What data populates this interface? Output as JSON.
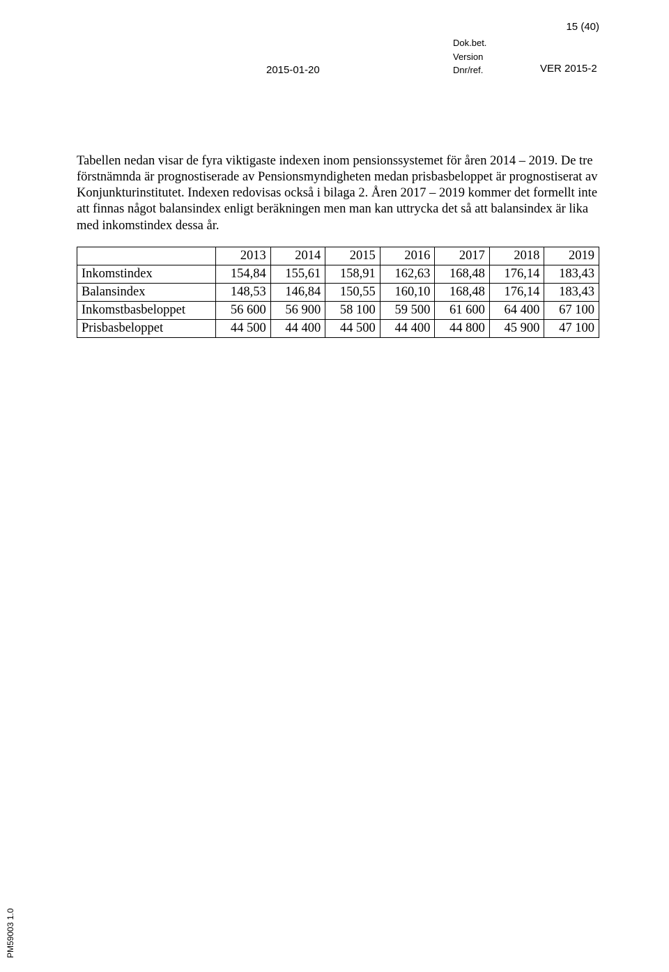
{
  "header": {
    "page_count": "15 (40)",
    "date": "2015-01-20",
    "label_dok": "Dok.bet.",
    "label_version": "Version",
    "label_dnr": "Dnr/ref.",
    "ver": "VER 2015-2"
  },
  "paragraph": "Tabellen nedan visar de fyra viktigaste indexen inom pensionssystemet för åren 2014 – 2019. De tre förstnämnda är prognostiserade av Pensionsmyndigheten medan prisbasbeloppet är prognostiserat av Konjunkturinstitutet. Indexen redovisas också i bilaga 2. Åren 2017 – 2019 kommer det formellt inte att finnas något balansindex enligt beräkningen men man kan uttrycka det så att balansindex är lika med inkomstindex dessa år.",
  "table": {
    "columns": [
      "2013",
      "2014",
      "2015",
      "2016",
      "2017",
      "2018",
      "2019"
    ],
    "rows": [
      {
        "label": "Inkomstindex",
        "cells": [
          "154,84",
          "155,61",
          "158,91",
          "162,63",
          "168,48",
          "176,14",
          "183,43"
        ]
      },
      {
        "label": "Balansindex",
        "cells": [
          "148,53",
          "146,84",
          "150,55",
          "160,10",
          "168,48",
          "176,14",
          "183,43"
        ]
      },
      {
        "label": "Inkomstbasbeloppet",
        "cells": [
          "56 600",
          "56 900",
          "58 100",
          "59 500",
          "61 600",
          "64 400",
          "67 100"
        ]
      },
      {
        "label": "Prisbasbeloppet",
        "cells": [
          "44 500",
          "44 400",
          "44 500",
          "44 400",
          "44 800",
          "45 900",
          "47 100"
        ]
      }
    ]
  },
  "footer_code": "PM59003 1.0"
}
